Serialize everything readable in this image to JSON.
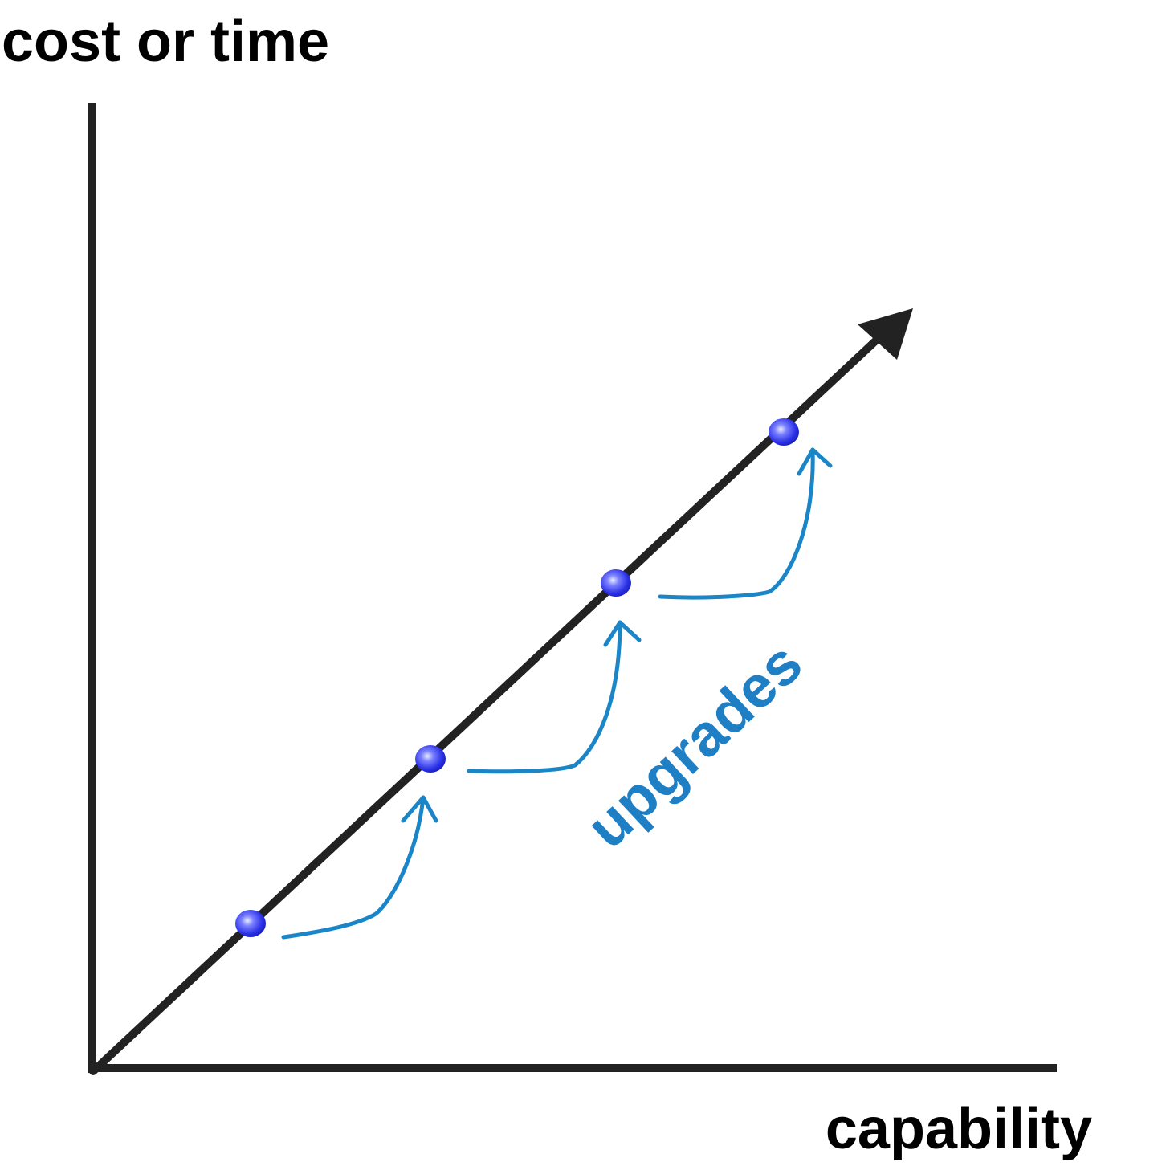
{
  "diagram": {
    "y_axis_label": "cost or time",
    "x_axis_label": "capability",
    "annotation": "upgrades",
    "milestone_count": 4,
    "colors": {
      "axis": "#222222",
      "trend_line": "#222222",
      "milestone": "#2f35e0",
      "upgrade_arrow": "#1a86c8",
      "annotation_text": "#1f7fc4"
    },
    "icons": {
      "trend_arrowhead": "triangle-arrowhead-icon",
      "milestone": "blue-sphere-dot-icon",
      "upgrade": "curved-up-arrow-icon"
    }
  }
}
